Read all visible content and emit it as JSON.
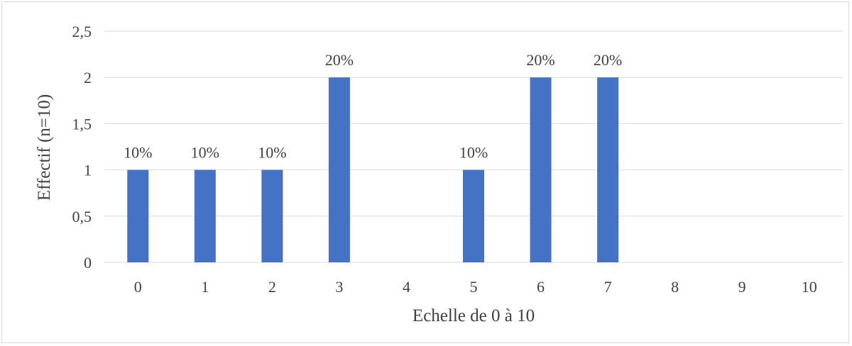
{
  "chart_data": {
    "type": "bar",
    "title": "",
    "xlabel": "Echelle de 0 à 10",
    "ylabel": "Effectif (n=10)",
    "categories": [
      "0",
      "1",
      "2",
      "3",
      "4",
      "5",
      "6",
      "7",
      "8",
      "9",
      "10"
    ],
    "values": [
      1,
      1,
      1,
      2,
      0,
      1,
      2,
      2,
      0,
      0,
      0
    ],
    "data_labels": [
      "10%",
      "10%",
      "10%",
      "20%",
      "",
      "10%",
      "20%",
      "20%",
      "",
      "",
      ""
    ],
    "y_ticks": [
      "0",
      "0,5",
      "1",
      "1,5",
      "2",
      "2,5"
    ],
    "y_tick_values": [
      0,
      0.5,
      1,
      1.5,
      2,
      2.5
    ],
    "ylim": [
      0,
      2.5
    ],
    "grid": "horizontal",
    "legend": "none",
    "bar_color": "#4472c4",
    "grid_color": "#d9d9d9"
  }
}
